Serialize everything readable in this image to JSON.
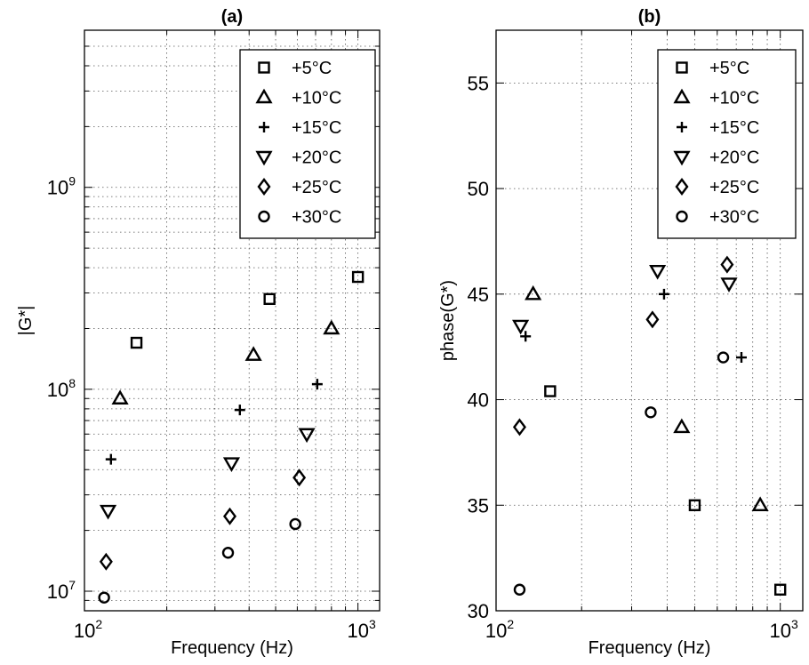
{
  "series_styles": [
    {
      "name": "+5°C",
      "marker": "square"
    },
    {
      "name": "+10°C",
      "marker": "triangle-up"
    },
    {
      "name": "+15°C",
      "marker": "plus"
    },
    {
      "name": "+20°C",
      "marker": "triangle-down"
    },
    {
      "name": "+25°C",
      "marker": "diamond"
    },
    {
      "name": "+30°C",
      "marker": "circle"
    }
  ],
  "chart_data": [
    {
      "type": "scatter",
      "title": "(a)",
      "xlabel": "Frequency (Hz)",
      "ylabel": "|G*|",
      "xscale": "log",
      "yscale": "log",
      "xlim": [
        100,
        1200
      ],
      "ylim": [
        8000000,
        6000000000
      ],
      "xticks": [
        {
          "base": "10",
          "exp": "2"
        },
        {
          "base": "10",
          "exp": "3"
        }
      ],
      "yticks": [
        {
          "base": "10",
          "exp": "7"
        },
        {
          "base": "10",
          "exp": "8"
        },
        {
          "base": "10",
          "exp": "9"
        }
      ],
      "grid": true,
      "legend": "top-right",
      "series": [
        {
          "name": "+5°C",
          "x": [
            155,
            475,
            1000
          ],
          "y": [
            170000000,
            280000000,
            360000000
          ]
        },
        {
          "name": "+10°C",
          "x": [
            135,
            415,
            800
          ],
          "y": [
            90000000,
            148000000,
            200000000
          ]
        },
        {
          "name": "+15°C",
          "x": [
            125,
            370,
            710
          ],
          "y": [
            45000000,
            79000000,
            106000000
          ]
        },
        {
          "name": "+20°C",
          "x": [
            122,
            345,
            650
          ],
          "y": [
            25000000,
            43000000,
            60000000
          ]
        },
        {
          "name": "+25°C",
          "x": [
            120,
            340,
            610
          ],
          "y": [
            14000000,
            23500000,
            36500000
          ]
        },
        {
          "name": "+30°C",
          "x": [
            118,
            335,
            590
          ],
          "y": [
            9300000,
            15500000,
            21500000
          ]
        }
      ]
    },
    {
      "type": "scatter",
      "title": "(b)",
      "xlabel": "Frequency (Hz)",
      "ylabel": "phase(G*)",
      "xscale": "log",
      "yscale": "linear",
      "xlim": [
        100,
        1200
      ],
      "ylim": [
        30,
        57.5
      ],
      "xticks": [
        {
          "base": "10",
          "exp": "2"
        },
        {
          "base": "10",
          "exp": "3"
        }
      ],
      "yticks": [
        "30",
        "35",
        "40",
        "45",
        "50",
        "55"
      ],
      "grid": true,
      "legend": "top-right",
      "series": [
        {
          "name": "+5°C",
          "x": [
            155,
            500,
            1000
          ],
          "y": [
            40.4,
            35.0,
            31.0
          ]
        },
        {
          "name": "+10°C",
          "x": [
            135,
            450,
            850
          ],
          "y": [
            45.0,
            38.7,
            35.0
          ]
        },
        {
          "name": "+15°C",
          "x": [
            127,
            390,
            730
          ],
          "y": [
            43.0,
            45.0,
            42.0
          ]
        },
        {
          "name": "+20°C",
          "x": [
            122,
            370,
            660
          ],
          "y": [
            43.5,
            46.1,
            45.5
          ]
        },
        {
          "name": "+25°C",
          "x": [
            121,
            355,
            650
          ],
          "y": [
            38.7,
            43.8,
            46.4
          ]
        },
        {
          "name": "+30°C",
          "x": [
            121,
            350,
            630
          ],
          "y": [
            31.0,
            39.4,
            42.0
          ]
        }
      ]
    }
  ]
}
